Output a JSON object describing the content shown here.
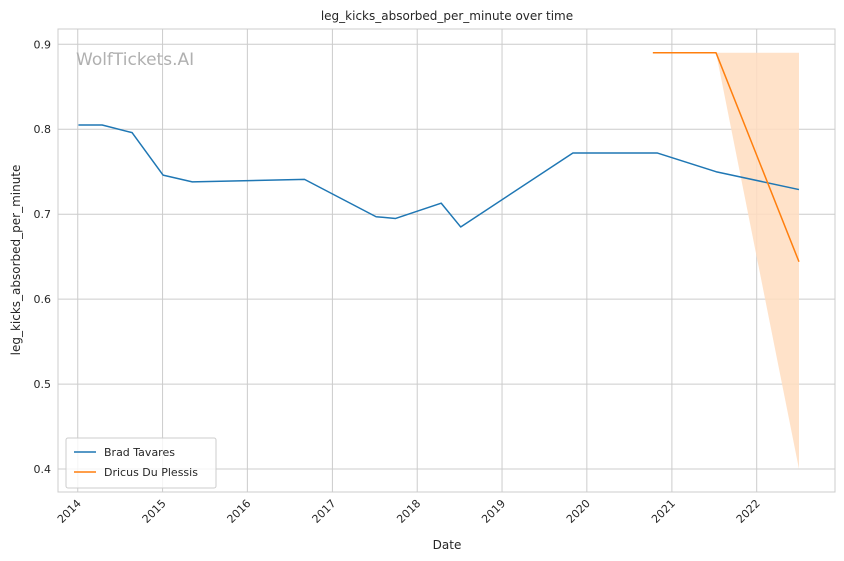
{
  "chart_data": {
    "type": "line",
    "title": "leg_kicks_absorbed_per_minute over time",
    "xlabel": "Date",
    "ylabel": "leg_kicks_absorbed_per_minute",
    "xlim": [
      "2013-10-08",
      "2022-12-04"
    ],
    "ylim": [
      0.373,
      0.918
    ],
    "x_ticks": [
      "2014",
      "2015",
      "2016",
      "2017",
      "2018",
      "2019",
      "2020",
      "2021",
      "2022"
    ],
    "y_ticks": [
      0.4,
      0.5,
      0.6,
      0.7,
      0.8,
      0.9
    ],
    "grid": true,
    "legend_position": "lower-left",
    "watermark": "WolfTickets.AI",
    "series": [
      {
        "name": "Brad Tavares",
        "color": "#1f77b4",
        "points": [
          [
            "2014-01-04",
            0.805
          ],
          [
            "2014-04-16",
            0.805
          ],
          [
            "2014-08-23",
            0.796
          ],
          [
            "2015-01-03",
            0.746
          ],
          [
            "2015-05-09",
            0.738
          ],
          [
            "2016-09-03",
            0.741
          ],
          [
            "2017-07-08",
            0.697
          ],
          [
            "2017-09-30",
            0.695
          ],
          [
            "2018-04-14",
            0.713
          ],
          [
            "2018-07-07",
            0.685
          ],
          [
            "2019-11-02",
            0.772
          ],
          [
            "2020-10-31",
            0.772
          ],
          [
            "2021-07-10",
            0.75
          ],
          [
            "2022-07-02",
            0.729
          ]
        ]
      },
      {
        "name": "Dricus Du Plessis",
        "color": "#ff7f0e",
        "band_color": "#ffddc0",
        "points": [
          [
            "2020-10-11",
            0.89
          ],
          [
            "2021-07-10",
            0.89
          ],
          [
            "2022-07-02",
            0.644
          ]
        ],
        "band": [
          [
            "2021-07-10",
            0.89,
            0.89
          ],
          [
            "2022-07-02",
            0.4,
            0.89
          ]
        ]
      }
    ]
  }
}
